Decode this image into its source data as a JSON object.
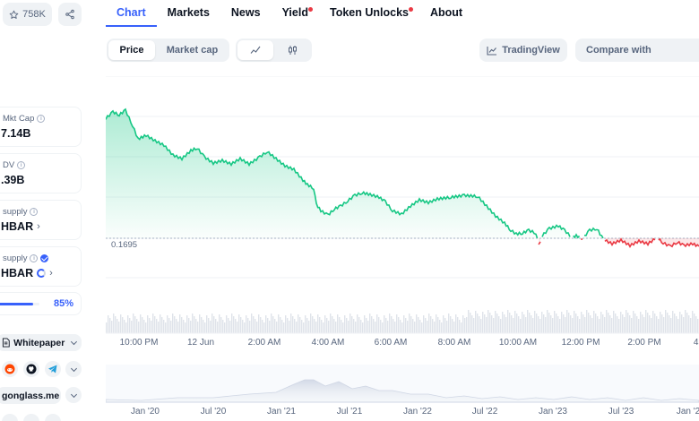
{
  "header": {
    "watchlist_count": "758K"
  },
  "stats": {
    "mkt_cap": {
      "label": "Mkt Cap",
      "value": "7.14B"
    },
    "fdv": {
      "label": "DV",
      "value": ".39B"
    },
    "circ_supply": {
      "label": "supply",
      "value": "HBAR"
    },
    "total_supply": {
      "label": "supply",
      "value": "HBAR"
    },
    "progress_pct": "85%",
    "progress_fraction": 0.85
  },
  "links": {
    "whitepaper": "Whitepaper",
    "website": "gonglass.me"
  },
  "tabs": [
    {
      "label": "Chart",
      "active": true,
      "dot": false
    },
    {
      "label": "Markets",
      "active": false,
      "dot": false
    },
    {
      "label": "News",
      "active": false,
      "dot": false
    },
    {
      "label": "Yield",
      "active": false,
      "dot": true
    },
    {
      "label": "Token Unlocks",
      "active": false,
      "dot": true
    },
    {
      "label": "About",
      "active": false,
      "dot": false
    }
  ],
  "toolbar": {
    "price": "Price",
    "market_cap": "Market cap",
    "tradingview": "TradingView",
    "compare": "Compare with"
  },
  "chart": {
    "reference_price": "0.1695",
    "x_ticks": [
      "10:00 PM",
      "12 Jun",
      "2:00 AM",
      "4:00 AM",
      "6:00 AM",
      "8:00 AM",
      "10:00 AM",
      "12:00 PM",
      "2:00 PM",
      "4:"
    ],
    "nav_ticks": [
      "Jan '20",
      "Jul '20",
      "Jan '21",
      "Jul '21",
      "Jan '22",
      "Jul '22",
      "Jan '23",
      "Jul '23",
      "Jan '2"
    ]
  },
  "colors": {
    "accent": "#3861fb",
    "up": "#16c784",
    "down": "#ea3943",
    "red_dot": "#ea3943"
  }
}
